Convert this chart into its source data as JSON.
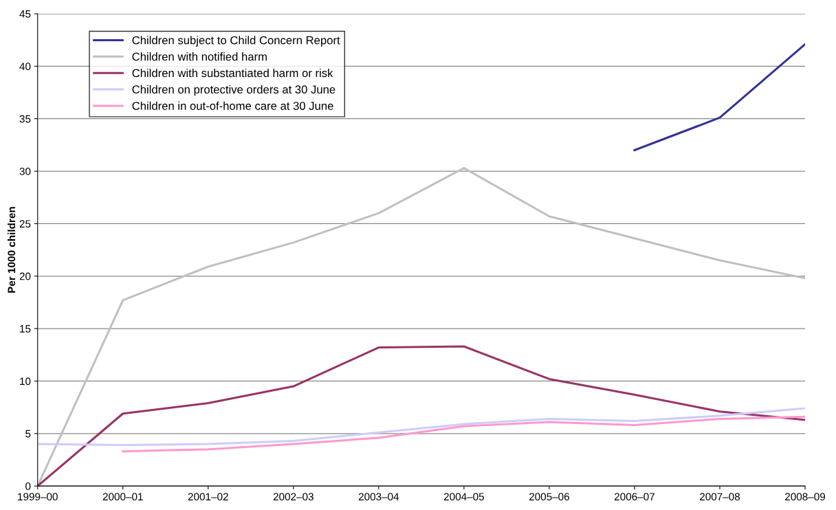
{
  "chart_data": {
    "type": "line",
    "ylabel": "Per 1000 children",
    "categories": [
      "1999–00",
      "2000–01",
      "2001–02",
      "2002–03",
      "2003–04",
      "2004–05",
      "2005–06",
      "2006–07",
      "2007–08",
      "2008–09"
    ],
    "series": [
      {
        "name": "Children subject to Child Concern Report",
        "color": "#333399",
        "values": [
          null,
          null,
          null,
          null,
          null,
          null,
          null,
          32.0,
          35.1,
          42.1
        ]
      },
      {
        "name": "Children with notified harm",
        "color": "#c0c0c0",
        "values": [
          0,
          17.7,
          20.9,
          23.2,
          26.0,
          30.3,
          25.7,
          23.6,
          21.5,
          19.8
        ]
      },
      {
        "name": "Children with substantiated harm or risk",
        "color": "#993366",
        "values": [
          0,
          6.9,
          7.9,
          9.5,
          13.2,
          13.3,
          10.2,
          8.7,
          7.1,
          6.3
        ]
      },
      {
        "name": "Children on protective orders at 30 June",
        "color": "#ccccff",
        "values": [
          4.0,
          3.9,
          4.0,
          4.3,
          5.1,
          5.9,
          6.4,
          6.2,
          6.7,
          7.4
        ]
      },
      {
        "name": "Children in out-of-home care at 30 June",
        "color": "#ff99cc",
        "values": [
          null,
          3.3,
          3.5,
          4.0,
          4.6,
          5.7,
          6.1,
          5.8,
          6.4,
          6.6
        ]
      }
    ],
    "ylim": [
      0,
      45
    ],
    "yticks": [
      0,
      5,
      10,
      15,
      20,
      25,
      30,
      35,
      40,
      45
    ],
    "grid": "y",
    "legend": "top left",
    "marker": "none",
    "line_style": "solid"
  }
}
